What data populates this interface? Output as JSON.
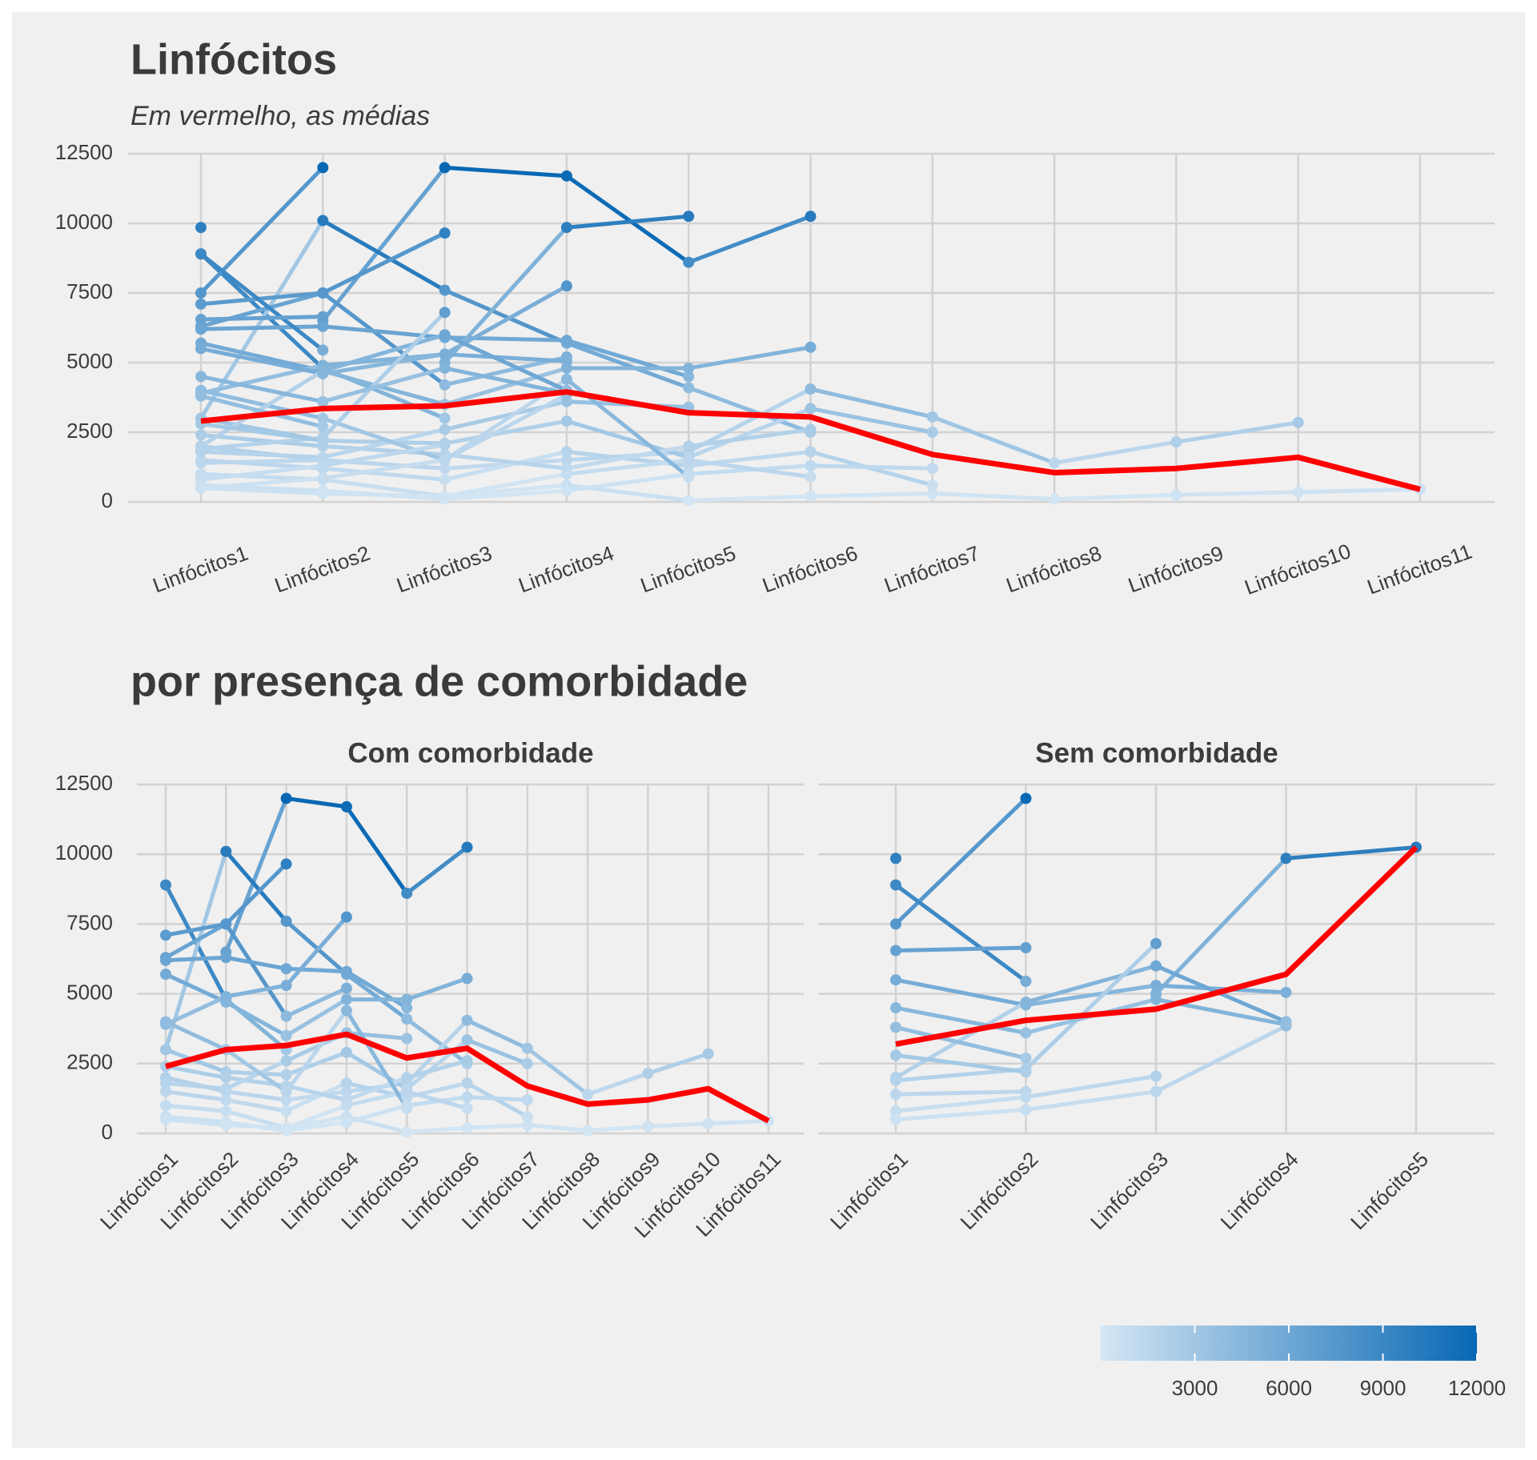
{
  "chart_data": [
    {
      "type": "line",
      "title": "Linfócitos",
      "subtitle": "Em vermelho, as médias",
      "categories": [
        "Linfócitos1",
        "Linfócitos2",
        "Linfócitos3",
        "Linfócitos4",
        "Linfócitos5",
        "Linfócitos6",
        "Linfócitos7",
        "Linfócitos8",
        "Linfócitos9",
        "Linfócitos10",
        "Linfócitos11"
      ],
      "ylim": [
        0,
        12500
      ],
      "yticks": [
        0,
        2500,
        5000,
        7500,
        10000,
        12500
      ],
      "grid": true,
      "series": [
        {
          "values": [
            null,
            6500,
            12000,
            11700,
            8600,
            10250,
            null,
            null,
            null,
            null,
            null
          ]
        },
        {
          "values": [
            8900,
            4800,
            3000,
            null,
            null,
            null,
            null,
            null,
            null,
            null,
            null
          ]
        },
        {
          "values": [
            3000,
            10100,
            7600,
            5700,
            4100,
            2500,
            null,
            null,
            null,
            null,
            null
          ]
        },
        {
          "values": [
            6300,
            7500,
            9650,
            null,
            null,
            null,
            null,
            null,
            null,
            null,
            null
          ]
        },
        {
          "values": [
            7100,
            7500,
            4200,
            5200,
            null,
            null,
            null,
            null,
            null,
            null,
            null
          ]
        },
        {
          "values": [
            6200,
            6300,
            5900,
            5800,
            4500,
            null,
            null,
            null,
            null,
            null,
            null
          ]
        },
        {
          "values": [
            5700,
            4700,
            3500,
            4800,
            4800,
            5550,
            null,
            null,
            null,
            null,
            null
          ]
        },
        {
          "values": [
            2000,
            1500,
            1200,
            1500,
            1800,
            4050,
            3050,
            1400,
            2150,
            2850,
            null
          ]
        },
        {
          "values": [
            1000,
            800,
            200,
            600,
            50,
            200,
            300,
            100,
            250,
            350,
            450
          ]
        },
        {
          "values": [
            3900,
            4900,
            5300,
            7750,
            null,
            null,
            null,
            null,
            null,
            null,
            null
          ]
        },
        {
          "values": [
            3000,
            2200,
            2100,
            2900,
            1600,
            3350,
            2500,
            null,
            null,
            null,
            null
          ]
        },
        {
          "values": [
            1500,
            1200,
            800,
            1800,
            1300,
            1800,
            600,
            null,
            null,
            null,
            null
          ]
        },
        {
          "values": [
            600,
            400,
            100,
            400,
            1000,
            1300,
            1200,
            null,
            null,
            null,
            null
          ]
        },
        {
          "values": [
            2400,
            2000,
            1700,
            1200,
            2000,
            2600,
            null,
            null,
            null,
            null,
            null
          ]
        },
        {
          "values": [
            1800,
            1600,
            2600,
            3600,
            3400,
            null,
            null,
            null,
            null,
            null,
            null
          ]
        },
        {
          "values": [
            500,
            300,
            200,
            1000,
            1500,
            900,
            null,
            null,
            null,
            null,
            null
          ]
        },
        {
          "values": [
            4000,
            3000,
            1500,
            4400,
            900,
            null,
            null,
            null,
            null,
            null,
            null
          ]
        },
        {
          "values": [
            7500,
            12000,
            null,
            null,
            null,
            null,
            null,
            null,
            null,
            null,
            null
          ]
        },
        {
          "values": [
            8900,
            5450,
            null,
            null,
            null,
            null,
            null,
            null,
            null,
            null,
            null
          ]
        },
        {
          "values": [
            null,
            null,
            5000,
            9850,
            10250,
            null,
            null,
            null,
            null,
            null,
            null
          ]
        },
        {
          "values": [
            9850,
            null,
            null,
            null,
            null,
            null,
            null,
            null,
            null,
            null,
            null
          ]
        },
        {
          "values": [
            6550,
            6650,
            null,
            null,
            null,
            null,
            null,
            null,
            null,
            null,
            null
          ]
        },
        {
          "values": [
            5500,
            4600,
            5300,
            5050,
            null,
            null,
            null,
            null,
            null,
            null,
            null
          ]
        },
        {
          "values": [
            2000,
            4700,
            6000,
            4000,
            null,
            null,
            null,
            null,
            null,
            null,
            null
          ]
        },
        {
          "values": [
            1900,
            2300,
            6800,
            null,
            null,
            null,
            null,
            null,
            null,
            null,
            null
          ]
        },
        {
          "values": [
            3800,
            2700,
            null,
            null,
            null,
            null,
            null,
            null,
            null,
            null,
            null
          ]
        },
        {
          "values": [
            4500,
            3600,
            4800,
            3900,
            null,
            null,
            null,
            null,
            null,
            null,
            null
          ]
        },
        {
          "values": [
            1400,
            1500,
            null,
            null,
            null,
            null,
            null,
            null,
            null,
            null,
            null
          ]
        },
        {
          "values": [
            800,
            1300,
            2050,
            null,
            null,
            null,
            null,
            null,
            null,
            null,
            null
          ]
        },
        {
          "values": [
            500,
            850,
            1500,
            3850,
            null,
            null,
            null,
            null,
            null,
            null,
            null
          ]
        },
        {
          "values": [
            2800,
            2200,
            null,
            null,
            null,
            null,
            null,
            null,
            null,
            null,
            null
          ]
        }
      ],
      "mean": {
        "color": "#ff0000",
        "values": [
          2900,
          3350,
          3450,
          3950,
          3200,
          3050,
          1700,
          1050,
          1200,
          1600,
          450
        ]
      }
    },
    {
      "type": "line",
      "title": "por presença de comorbidade",
      "ylim": [
        0,
        12500
      ],
      "yticks": [
        0,
        2500,
        5000,
        7500,
        10000,
        12500
      ],
      "grid": true,
      "color_scale": {
        "low": "#d4e6f4",
        "high": "#0868b4",
        "lim": [
          0,
          12000
        ],
        "ticks": [
          3000,
          6000,
          9000,
          12000
        ]
      },
      "panels": [
        {
          "title": "Com comorbidade",
          "categories": [
            "Linfócitos1",
            "Linfócitos2",
            "Linfócitos3",
            "Linfócitos4",
            "Linfócitos5",
            "Linfócitos6",
            "Linfócitos7",
            "Linfócitos8",
            "Linfócitos9",
            "Linfócitos10",
            "Linfócitos11"
          ],
          "series": [
            {
              "values": [
                null,
                6500,
                12000,
                11700,
                8600,
                10250,
                null,
                null,
                null,
                null,
                null
              ]
            },
            {
              "values": [
                8900,
                4800,
                3000,
                null,
                null,
                null,
                null,
                null,
                null,
                null,
                null
              ]
            },
            {
              "values": [
                3000,
                10100,
                7600,
                5700,
                4100,
                2500,
                null,
                null,
                null,
                null,
                null
              ]
            },
            {
              "values": [
                6300,
                7500,
                9650,
                null,
                null,
                null,
                null,
                null,
                null,
                null,
                null
              ]
            },
            {
              "values": [
                7100,
                7500,
                4200,
                5200,
                null,
                null,
                null,
                null,
                null,
                null,
                null
              ]
            },
            {
              "values": [
                6200,
                6300,
                5900,
                5800,
                4500,
                null,
                null,
                null,
                null,
                null,
                null
              ]
            },
            {
              "values": [
                5700,
                4700,
                3500,
                4800,
                4800,
                5550,
                null,
                null,
                null,
                null,
                null
              ]
            },
            {
              "values": [
                2000,
                1500,
                1200,
                1500,
                1800,
                4050,
                3050,
                1400,
                2150,
                2850,
                null
              ]
            },
            {
              "values": [
                1000,
                800,
                200,
                600,
                50,
                200,
                300,
                100,
                250,
                350,
                450
              ]
            },
            {
              "values": [
                3900,
                4900,
                5300,
                7750,
                null,
                null,
                null,
                null,
                null,
                null,
                null
              ]
            },
            {
              "values": [
                3000,
                2200,
                2100,
                2900,
                1600,
                3350,
                2500,
                null,
                null,
                null,
                null
              ]
            },
            {
              "values": [
                1500,
                1200,
                800,
                1800,
                1300,
                1800,
                600,
                null,
                null,
                null,
                null
              ]
            },
            {
              "values": [
                600,
                400,
                100,
                400,
                1000,
                1300,
                1200,
                null,
                null,
                null,
                null
              ]
            },
            {
              "values": [
                2400,
                2000,
                1700,
                1200,
                2000,
                2600,
                null,
                null,
                null,
                null,
                null
              ]
            },
            {
              "values": [
                1800,
                1600,
                2600,
                3600,
                3400,
                null,
                null,
                null,
                null,
                null,
                null
              ]
            },
            {
              "values": [
                500,
                300,
                200,
                1000,
                1500,
                900,
                null,
                null,
                null,
                null,
                null
              ]
            },
            {
              "values": [
                4000,
                3000,
                1500,
                4400,
                900,
                null,
                null,
                null,
                null,
                null,
                null
              ]
            }
          ],
          "mean": {
            "color": "#ff0000",
            "values": [
              2400,
              3000,
              3150,
              3550,
              2700,
              3050,
              1700,
              1050,
              1200,
              1600,
              450
            ]
          }
        },
        {
          "title": "Sem comorbidade",
          "categories": [
            "Linfócitos1",
            "Linfócitos2",
            "Linfócitos3",
            "Linfócitos4",
            "Linfócitos5"
          ],
          "series": [
            {
              "values": [
                7500,
                12000,
                null,
                null,
                null
              ]
            },
            {
              "values": [
                8900,
                5450,
                null,
                null,
                null
              ]
            },
            {
              "values": [
                null,
                null,
                5000,
                9850,
                10250
              ]
            },
            {
              "values": [
                9850,
                null,
                null,
                null,
                null
              ]
            },
            {
              "values": [
                6550,
                6650,
                null,
                null,
                null
              ]
            },
            {
              "values": [
                5500,
                4600,
                5300,
                5050,
                null
              ]
            },
            {
              "values": [
                2000,
                4700,
                6000,
                4000,
                null
              ]
            },
            {
              "values": [
                1900,
                2300,
                6800,
                null,
                null
              ]
            },
            {
              "values": [
                3800,
                2700,
                null,
                null,
                null
              ]
            },
            {
              "values": [
                4500,
                3600,
                4800,
                3900,
                null
              ]
            },
            {
              "values": [
                1400,
                1500,
                null,
                null,
                null
              ]
            },
            {
              "values": [
                800,
                1300,
                2050,
                null,
                null
              ]
            },
            {
              "values": [
                500,
                850,
                1500,
                3850,
                null
              ]
            },
            {
              "values": [
                2800,
                2200,
                null,
                null,
                null
              ]
            }
          ],
          "mean": {
            "color": "#ff0000",
            "values": [
              3200,
              4050,
              4450,
              5700,
              10250
            ]
          }
        }
      ]
    }
  ]
}
